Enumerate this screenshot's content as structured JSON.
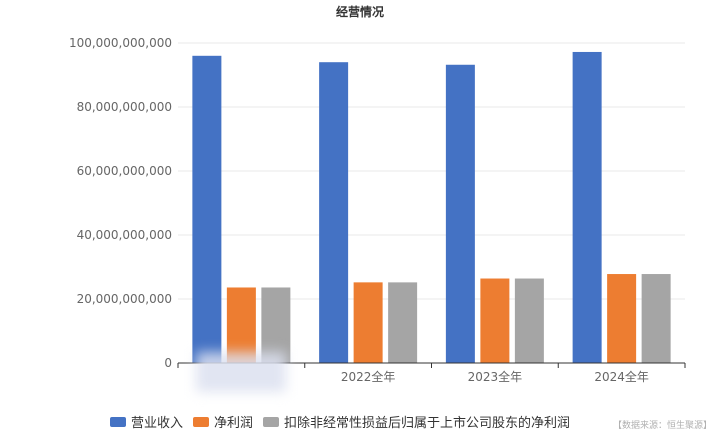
{
  "chart_data": {
    "type": "bar",
    "title": "经营情况",
    "categories": [
      "",
      "2022全年",
      "2023全年",
      "2024全年"
    ],
    "series": [
      {
        "name": "营业收入",
        "color": "#4472c4",
        "values": [
          96000000000,
          94000000000,
          93200000000,
          97200000000
        ]
      },
      {
        "name": "净利润",
        "color": "#ed7d31",
        "values": [
          23600000000,
          25200000000,
          26400000000,
          27800000000
        ]
      },
      {
        "name": "扣除非经常性损益后归属于上市公司股东的净利润",
        "color": "#a5a5a5",
        "values": [
          23600000000,
          25200000000,
          26400000000,
          27800000000
        ]
      }
    ],
    "ylim": [
      0,
      100000000000
    ],
    "yticks": [
      "0",
      "20,000,000,000",
      "40,000,000,000",
      "60,000,000,000",
      "80,000,000,000",
      "100,000,000,000"
    ],
    "grid": true,
    "legend_position": "bottom"
  },
  "source_note": "【数据来源：恒生聚源】"
}
